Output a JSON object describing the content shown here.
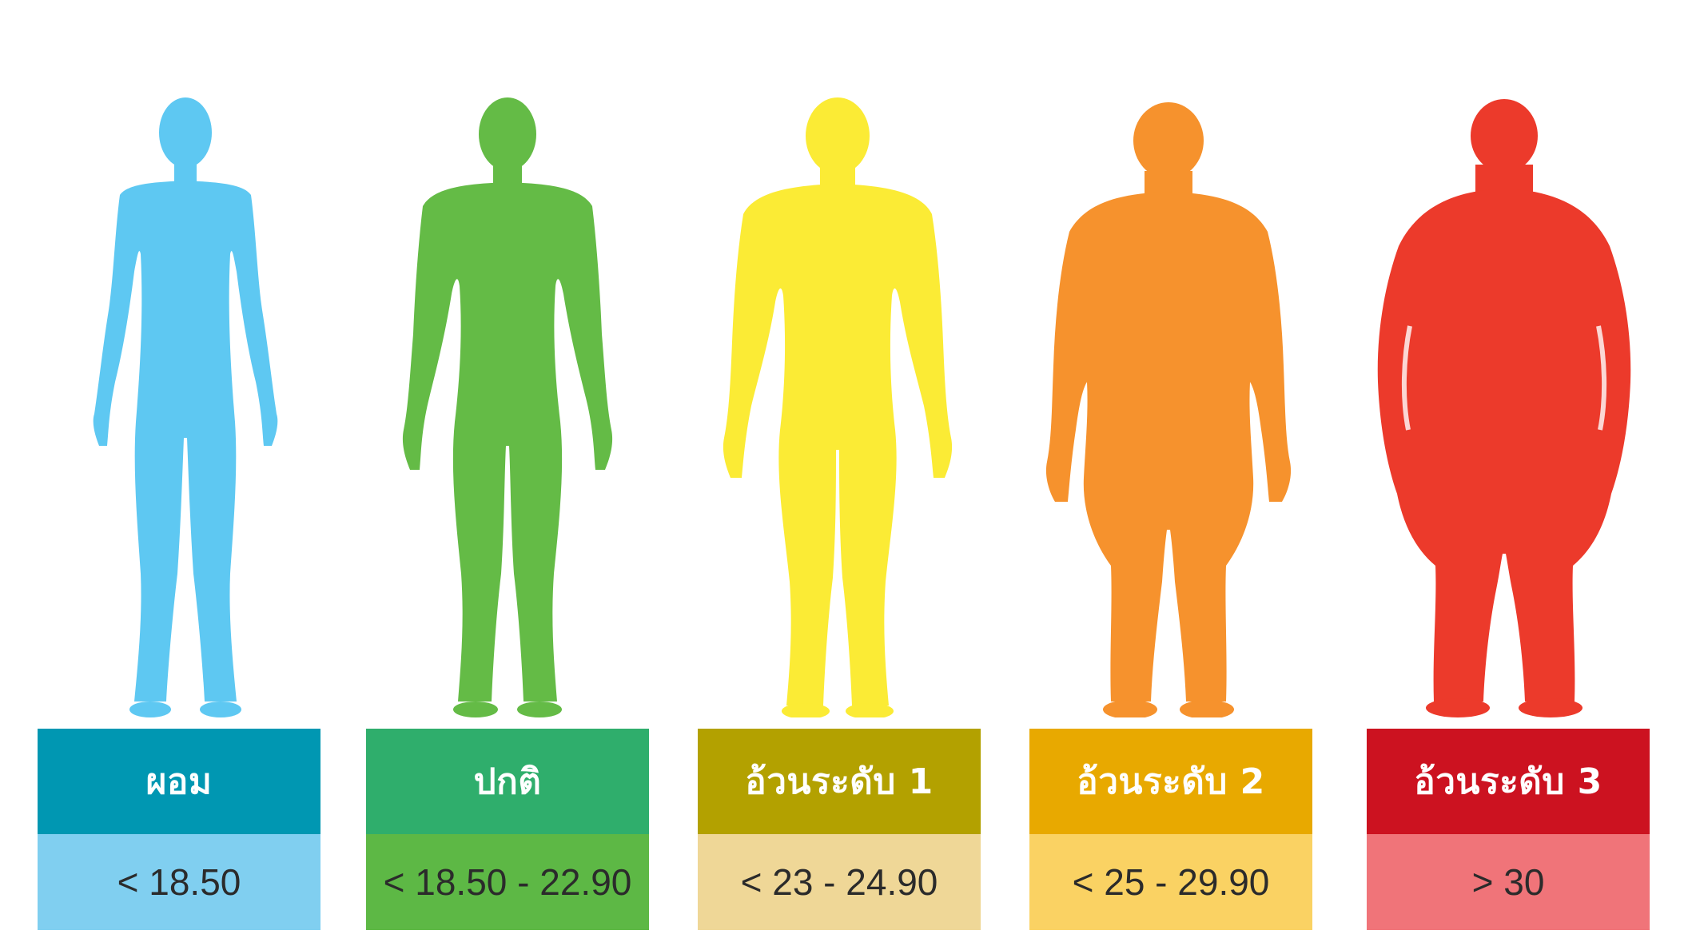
{
  "categories": [
    {
      "label": "ผอม",
      "range": "< 18.50",
      "figure_color": "#5ec8f2",
      "header_color": "#0097b2",
      "range_color": "#80cff0",
      "icon": "thin-body-silhouette-icon"
    },
    {
      "label": "ปกติ",
      "range": "< 18.50 - 22.90",
      "figure_color": "#64bb46",
      "header_color": "#2fae6c",
      "range_color": "#5db845",
      "icon": "normal-body-silhouette-icon"
    },
    {
      "label": "อ้วนระดับ 1",
      "range": "< 23 - 24.90",
      "figure_color": "#fbeb35",
      "header_color": "#b3a100",
      "range_color": "#efd797",
      "icon": "overweight-body-silhouette-icon"
    },
    {
      "label": "อ้วนระดับ 2",
      "range": "< 25 - 29.90",
      "figure_color": "#f6922d",
      "header_color": "#e8a900",
      "range_color": "#fad263",
      "icon": "obese-body-silhouette-icon"
    },
    {
      "label": "อ้วนระดับ 3",
      "range": "> 30",
      "figure_color": "#ec3a2b",
      "header_color": "#cc1220",
      "range_color": "#f07479",
      "icon": "very-obese-body-silhouette-icon"
    }
  ]
}
